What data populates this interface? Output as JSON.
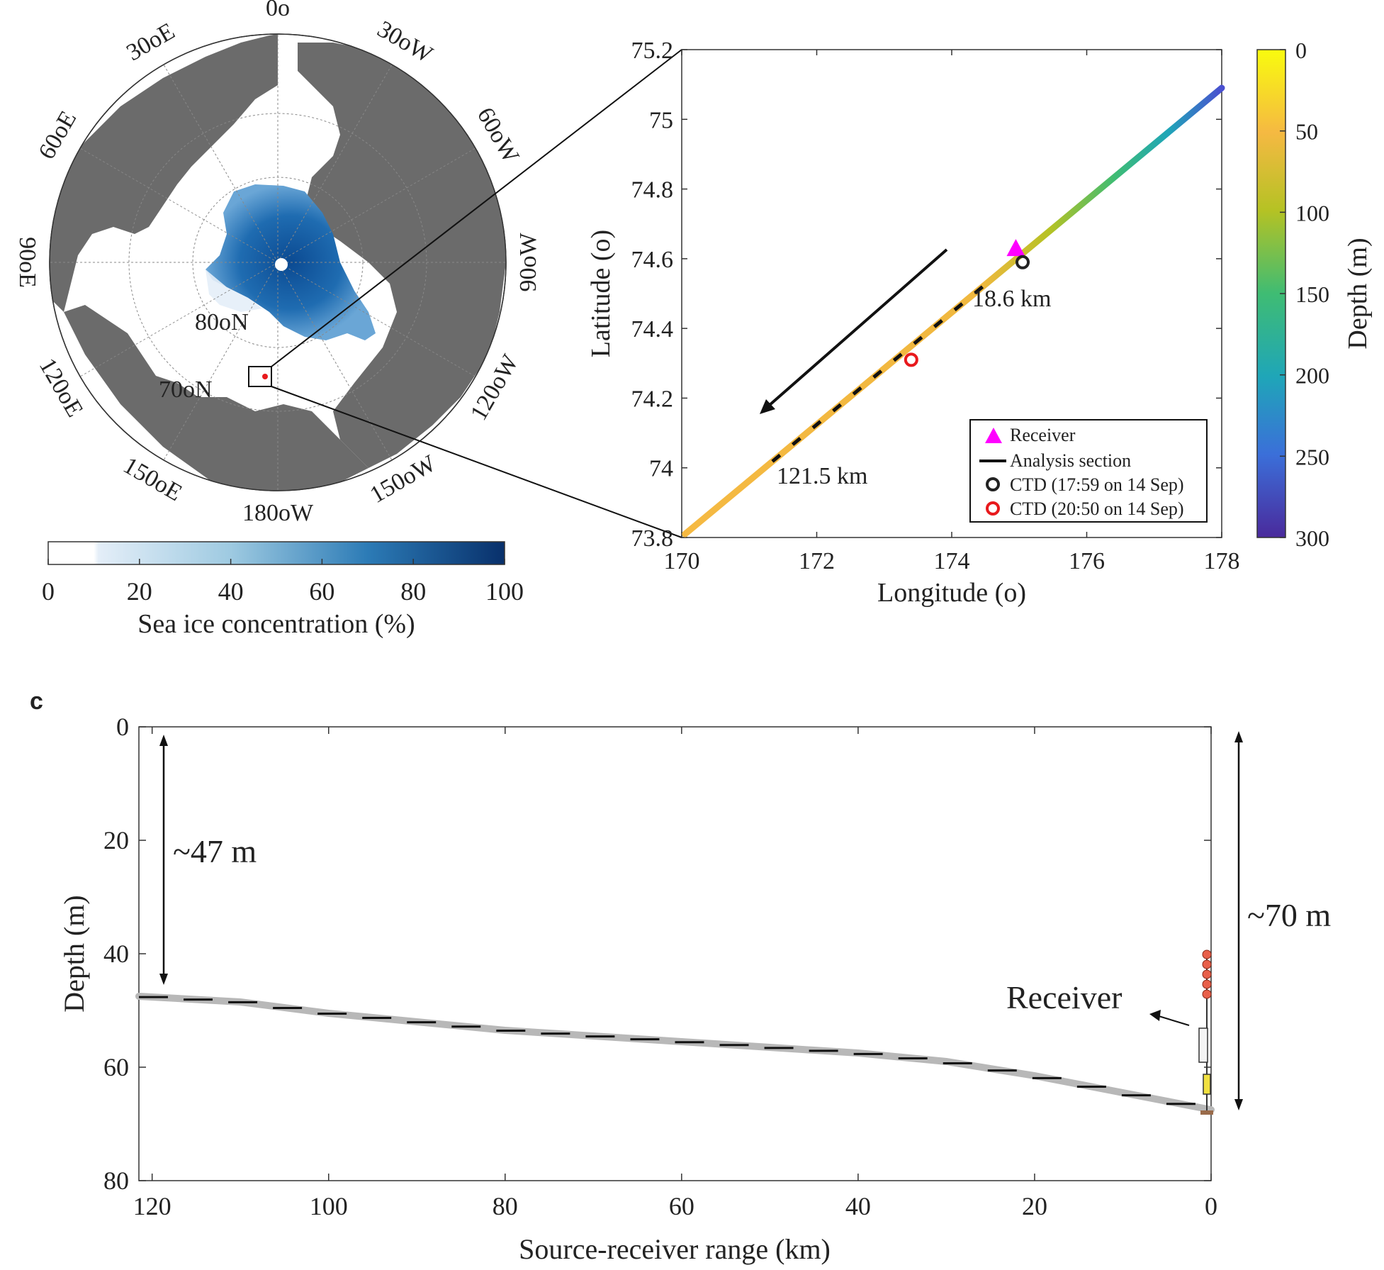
{
  "panel_map": {
    "meridian_labels": [
      {
        "text": "0o",
        "ang": 180
      },
      {
        "text": "30oE",
        "ang": 210
      },
      {
        "text": "60oE",
        "ang": 240
      },
      {
        "text": "90oE",
        "ang": 270
      },
      {
        "text": "120oE",
        "ang": 300
      },
      {
        "text": "150oE",
        "ang": 330
      },
      {
        "text": "180oW",
        "ang": 0
      },
      {
        "text": "150oW",
        "ang": 30
      },
      {
        "text": "120oW",
        "ang": 60
      },
      {
        "text": "90oW",
        "ang": 90
      },
      {
        "text": "60oW",
        "ang": 120
      },
      {
        "text": "30oW",
        "ang": 150
      }
    ],
    "lat_labels": [
      "80oN",
      "70oN"
    ],
    "colorbar": {
      "label": "Sea ice concentration (%)",
      "ticks": [
        0,
        20,
        40,
        60,
        80,
        100
      ],
      "colors": [
        "#ffffff",
        "#dce9f5",
        "#9ecae1",
        "#4292c6",
        "#08519c",
        "#08306b"
      ]
    }
  },
  "chart_data": [
    {
      "type": "line",
      "xlabel": "Longitude (o)",
      "ylabel": "Latitude (o)",
      "xlim": [
        170,
        178
      ],
      "ylim": [
        73.8,
        75.2
      ],
      "xticks": [
        170,
        172,
        174,
        176,
        178
      ],
      "yticks": [
        73.8,
        74,
        74.2,
        74.4,
        74.6,
        74.8,
        75,
        75.2
      ],
      "track": {
        "x": [
          170.05,
          178
        ],
        "y": [
          73.81,
          75.09
        ]
      },
      "analysis_section": {
        "from_lon": 171.4,
        "to_lon": 174.4
      },
      "receiver": {
        "x": 174.95,
        "y": 74.63
      },
      "ctd": [
        {
          "name": "CTD (17:59 on 14 Sep)",
          "x": 175.05,
          "y": 74.59,
          "color": "#222222"
        },
        {
          "name": "CTD (20:50 on 14 Sep)",
          "x": 173.4,
          "y": 74.31,
          "color": "#e8191c"
        }
      ],
      "annotations": [
        "18.6 km",
        "121.5 km"
      ],
      "legend": {
        "placement": "bottom-right",
        "entries": [
          "Receiver",
          "Analysis section",
          "CTD (17:59 on 14 Sep)",
          "CTD (20:50 on 14 Sep)"
        ]
      },
      "colorbar": {
        "label": "Depth (m)",
        "ticks": [
          0,
          50,
          100,
          150,
          200,
          250,
          300
        ],
        "colors": [
          "#f9fb0e",
          "#f5b942",
          "#b5c224",
          "#3fbc73",
          "#1fa6b8",
          "#3b6fd9",
          "#4a2a9c"
        ]
      }
    },
    {
      "type": "area",
      "panel_label": "c",
      "xlabel": "Source-receiver range (km)",
      "ylabel": "Depth (m)",
      "xlim": [
        121.5,
        0
      ],
      "ylim": [
        0,
        80
      ],
      "xticks": [
        120,
        100,
        80,
        60,
        40,
        20,
        0
      ],
      "yticks": [
        0,
        20,
        40,
        60,
        80
      ],
      "bathymetry": {
        "range_km": [
          121.5,
          110,
          100,
          90,
          80,
          70,
          60,
          50,
          40,
          30,
          20,
          10,
          0
        ],
        "depth_m": [
          47.5,
          48.5,
          50.5,
          52,
          53.5,
          54.5,
          55.5,
          56.5,
          57.5,
          59,
          61.5,
          64.5,
          67.5
        ]
      },
      "annotations": [
        "~47 m",
        "~70 m",
        "Receiver"
      ]
    }
  ]
}
